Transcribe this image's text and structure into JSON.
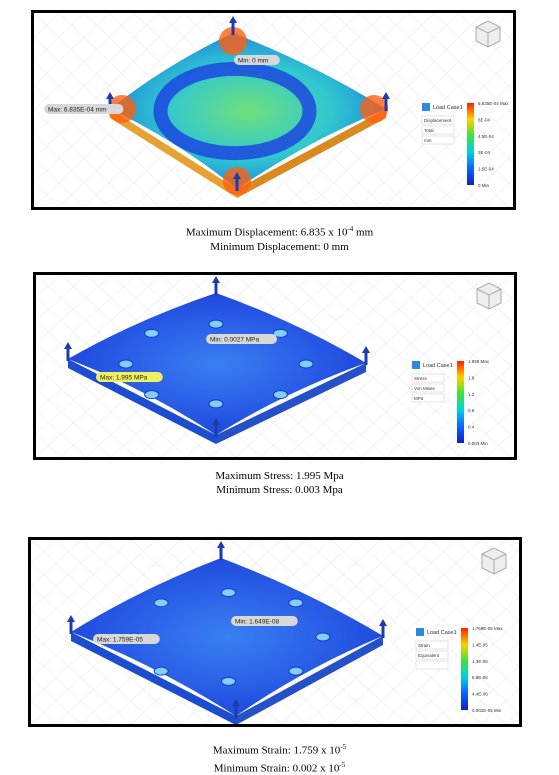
{
  "panels": [
    {
      "annotations": {
        "min": "Min: 0 mm",
        "max": "Max: 6.835E-04 mm"
      },
      "legend": {
        "load_case": "Load Case1",
        "result": "Displacement",
        "component": "Total",
        "unit": "mm",
        "scale": [
          "6.835E-04 Max",
          "6E-04",
          "4.5E-04",
          "3E-04",
          "1.5E-04",
          "0 Min"
        ]
      },
      "caption": [
        {
          "text": "Maximum Displacement: 6.835 x 10",
          "sup": "-4",
          "after": " mm"
        },
        {
          "text": "Minimum Displacement: 0 mm"
        }
      ]
    },
    {
      "annotations": {
        "min": "Min: 0.0027 MPa",
        "max": "Max: 1.995 MPa"
      },
      "legend": {
        "load_case": "Load Case1",
        "result": "Stress",
        "component": "Von Mises",
        "unit": "MPa",
        "scale": [
          "1.995 Max",
          "1.6",
          "1.2",
          "0.8",
          "0.4",
          "0.003 Min"
        ]
      },
      "caption": [
        {
          "text": "Maximum Stress: 1.995 Mpa"
        },
        {
          "text": "Minimum Stress: 0.003 Mpa"
        }
      ]
    },
    {
      "annotations": {
        "min": "Min: 1.649E-08",
        "max": "Max: 1.759E-05"
      },
      "legend": {
        "load_case": "Load Case1",
        "result": "Strain",
        "component": "Equivalent",
        "unit": "",
        "scale": [
          "1.759E-05 Max",
          "1.4E-05",
          "1.3E-05",
          "8.8E-06",
          "4.4E-06",
          "0.002E-05 Min"
        ]
      },
      "caption": [
        {
          "text": "Maximum Strain: 1.759 x 10",
          "sup": "-5"
        },
        {
          "text": "Minimum Strain: 0.002 x 10",
          "sup": "-5"
        }
      ]
    }
  ]
}
